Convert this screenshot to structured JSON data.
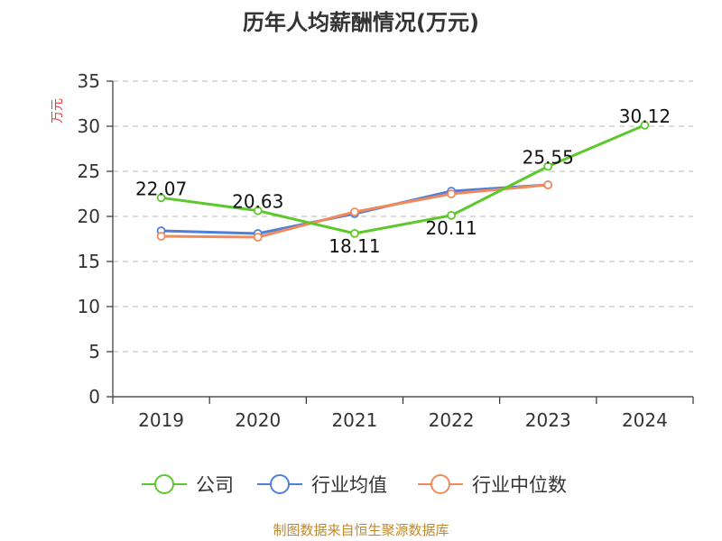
{
  "chart_data": {
    "type": "line",
    "title": "历年人均薪酬情况(万元)",
    "ylabel": "万元",
    "xlabel": "",
    "categories": [
      "2019",
      "2020",
      "2021",
      "2022",
      "2023",
      "2024"
    ],
    "ylim": [
      0,
      35
    ],
    "yticks": [
      0,
      5,
      10,
      15,
      20,
      25,
      30,
      35
    ],
    "grid": true,
    "legend_position": "bottom",
    "series": [
      {
        "name": "公司",
        "color": "#5dc72c",
        "values": [
          22.07,
          20.63,
          18.11,
          20.11,
          25.55,
          30.12
        ],
        "labels": [
          "22.07",
          "20.63",
          "18.11",
          "20.11",
          "25.55",
          "30.12"
        ]
      },
      {
        "name": "行业均值",
        "color": "#4f7fd9",
        "values": [
          18.4,
          18.1,
          20.3,
          22.8,
          23.5,
          null
        ]
      },
      {
        "name": "行业中位数",
        "color": "#f08a5a",
        "values": [
          17.8,
          17.7,
          20.5,
          22.5,
          23.5,
          null
        ]
      }
    ]
  },
  "footer": {
    "source": "制图数据来自恒生聚源数据库"
  }
}
